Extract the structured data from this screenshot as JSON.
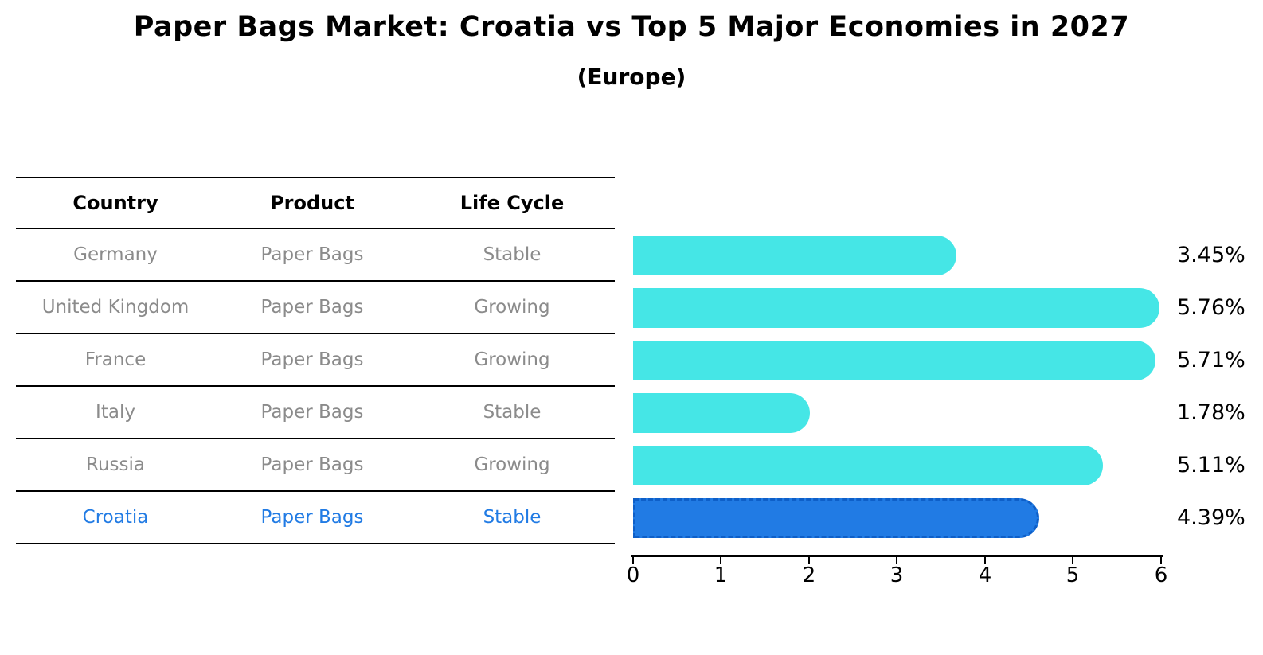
{
  "title": "Paper Bags Market: Croatia vs Top 5 Major Economies in 2027",
  "subtitle": "(Europe)",
  "table": {
    "headers": {
      "country": "Country",
      "product": "Product",
      "life_cycle": "Life Cycle"
    },
    "rows": [
      {
        "country": "Germany",
        "product": "Paper Bags",
        "life_cycle": "Stable"
      },
      {
        "country": "United Kingdom",
        "product": "Paper Bags",
        "life_cycle": "Growing"
      },
      {
        "country": "France",
        "product": "Paper Bags",
        "life_cycle": "Growing"
      },
      {
        "country": "Italy",
        "product": "Paper Bags",
        "life_cycle": "Stable"
      },
      {
        "country": "Russia",
        "product": "Paper Bags",
        "life_cycle": "Growing"
      },
      {
        "country": "Croatia",
        "product": "Paper Bags",
        "life_cycle": "Stable"
      }
    ],
    "highlight_row": "Croatia"
  },
  "chart_data": {
    "type": "bar",
    "orientation": "horizontal",
    "title": "Paper Bags Market: Croatia vs Top 5 Major Economies in 2027",
    "subtitle": "(Europe)",
    "categories": [
      "Germany",
      "United Kingdom",
      "France",
      "Italy",
      "Russia",
      "Croatia"
    ],
    "values": [
      3.45,
      5.76,
      5.71,
      1.78,
      5.11,
      4.39
    ],
    "value_labels": [
      "3.45%",
      "5.76%",
      "5.71%",
      "1.78%",
      "5.11%",
      "4.39%"
    ],
    "unit": "%",
    "xlim": [
      0,
      6
    ],
    "x_ticks": [
      0,
      1,
      2,
      3,
      4,
      5,
      6
    ],
    "grid": false,
    "legend": "none",
    "highlight_index": 5,
    "highlight_style": "dashed-edge"
  },
  "colors": {
    "bar_cyan": "#45E6E6",
    "highlight_blue": "#217BE4",
    "highlight_edge": "#0E5FC8",
    "table_text_gray": "#8B8B8B",
    "text_black": "#000000",
    "background": "#FFFFFF"
  }
}
